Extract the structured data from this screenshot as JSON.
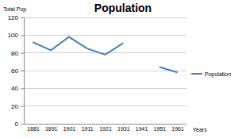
{
  "chart_data": {
    "type": "line",
    "title": "Population",
    "x_label": "Years",
    "y_label": "Total Pop",
    "categories": [
      "1881",
      "1891",
      "1901",
      "1911",
      "1921",
      "1931",
      "1941",
      "1951",
      "1961"
    ],
    "series": [
      {
        "name": "Population",
        "color": "#4a7ebb",
        "values": [
          92,
          83,
          98,
          85,
          78,
          91,
          null,
          64,
          58
        ]
      }
    ],
    "ylim": [
      0,
      120
    ],
    "yticks": [
      0,
      20,
      40,
      60,
      80,
      100,
      120
    ],
    "grid": true,
    "legend": "right"
  }
}
